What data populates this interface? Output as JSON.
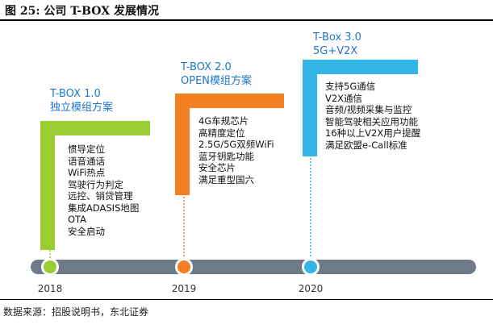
{
  "caption": "图 25: 公司 T-BOX 发展情况",
  "source": "数据来源：招股说明书，东北证券",
  "colors": {
    "green": "#9ACD32",
    "orange": "#F28022",
    "blue": "#33B5E5",
    "bar": "#6E7B87",
    "title_blue": "#1F77C9"
  },
  "stages": [
    {
      "year": "2018",
      "title_line1": "T-BOX 1.0",
      "title_line2": "独立模组方案",
      "features": [
        "惯导定位",
        "语音通话",
        "WiFi热点",
        "驾驶行为判定",
        "远控、销贷管理",
        "集成ADASIS地图",
        "OTA",
        "安全启动"
      ]
    },
    {
      "year": "2019",
      "title_line1": "T-BOX 2.0",
      "title_line2": "OPEN模组方案",
      "features": [
        "4G车规芯片",
        "高精度定位",
        "2.5G/5G双频WiFi",
        "蓝牙钥匙功能",
        "安全芯片",
        "满足重型国六"
      ]
    },
    {
      "year": "2020",
      "title_line1": "T-Box 3.0",
      "title_line2": "5G+V2X",
      "features": [
        "支持5G通信",
        "V2X通信",
        "音频/视频采集与监控",
        "智能驾驶相关应用功能",
        "16种以上V2X用户提醒",
        "满足欧盟e-Call标准"
      ]
    }
  ]
}
